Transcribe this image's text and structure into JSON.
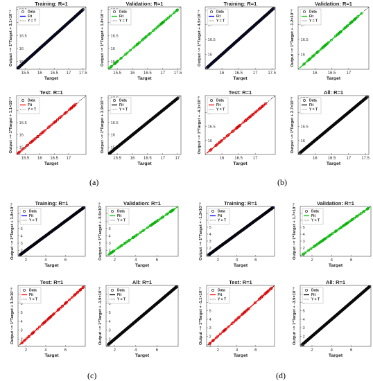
{
  "panel_labels": [
    "(a)",
    "(b)",
    "(c)",
    "(d)"
  ],
  "common": {
    "xlabel": "Target",
    "legend_labels": [
      "Data",
      "Fit",
      "Y = T"
    ],
    "colors": {
      "data": "#000000",
      "identity": "#000000",
      "training_fit": "#0000ff",
      "validation_fit": "#00cc00",
      "test_fit": "#ff0000",
      "all_fit": "#000000",
      "validation_markers": "#00aa00",
      "test_markers": "#cc0000"
    }
  },
  "chart_data": [
    {
      "group": "a",
      "type": "scatter",
      "title": "Training: R=1",
      "ylabel": "Output ~= 1*Target + 3.1×10⁻⁶",
      "fit": "training",
      "xlim": [
        15.2,
        17.6
      ],
      "ylim": [
        15.2,
        17.6
      ],
      "xticks": [
        "15.5",
        "16",
        "16.5",
        "17",
        "17.5"
      ],
      "yticks": [
        "15.5",
        "16",
        "16.5",
        "17",
        "17.5"
      ],
      "data_range": [
        15.2,
        17.5
      ],
      "markers": "dense",
      "marker_color": "data"
    },
    {
      "group": "a",
      "type": "scatter",
      "title": "Validation: R=1",
      "ylabel": "Output ~= 1*Target + 1.8×10⁻⁶",
      "fit": "validation",
      "xlim": [
        15.2,
        17.6
      ],
      "ylim": [
        15.2,
        17.6
      ],
      "xticks": [
        "15.5",
        "16",
        "16.5",
        "17",
        "17.5"
      ],
      "yticks": [
        "15.5",
        "16",
        "16.5",
        "17",
        "17.5"
      ],
      "data_range": [
        15.2,
        17.5
      ],
      "markers": "sparse",
      "marker_color": "validation_markers"
    },
    {
      "group": "b",
      "type": "scatter",
      "title": "Training: R=1",
      "ylabel": "Output ~= 1*Target + 4.5×10⁻⁶",
      "fit": "training",
      "xlim": [
        15.5,
        17.6
      ],
      "ylim": [
        15.5,
        17.6
      ],
      "xticks": [
        "16",
        "16.5",
        "17",
        "17.5"
      ],
      "yticks": [
        "16",
        "16.5",
        "17",
        "17.5"
      ],
      "data_range": [
        15.55,
        17.55
      ],
      "markers": "dense",
      "marker_color": "data"
    },
    {
      "group": "b",
      "type": "scatter",
      "title": "Validation: R=1",
      "ylabel": "Output ~= 1*Target + -1.2×10⁻⁶",
      "fit": "validation",
      "xlim": [
        15.5,
        17.6
      ],
      "ylim": [
        15.5,
        17.6
      ],
      "xticks": [
        "16",
        "16.5",
        "17"
      ],
      "yticks": [
        "16",
        "16.5",
        "17"
      ],
      "data_range": [
        15.55,
        17.4
      ],
      "markers": "sparse",
      "marker_color": "validation_markers"
    },
    {
      "group": "a",
      "type": "scatter",
      "title": "Test: R=1",
      "ylabel": "Output ~= 1*Target + 1.1×10⁻⁶",
      "fit": "test",
      "xlim": [
        15.2,
        17.6
      ],
      "ylim": [
        15.2,
        17.6
      ],
      "xticks": [
        "15.5",
        "16",
        "16.5",
        "17"
      ],
      "yticks": [
        "15.5",
        "16",
        "16.5",
        "17"
      ],
      "data_range": [
        15.2,
        17.3
      ],
      "markers": "sparse",
      "marker_color": "test_markers"
    },
    {
      "group": "a",
      "type": "scatter",
      "title": "",
      "ylabel": "Output ~= 1*Target + 3.9×10⁻⁶",
      "fit": "all",
      "xlim": [
        15.2,
        17.6
      ],
      "ylim": [
        15.2,
        17.6
      ],
      "xticks": [
        "15.5",
        "16",
        "16.5",
        "17",
        "17."
      ],
      "yticks": [
        "15.5",
        "16",
        "16.5",
        "17",
        "17.5"
      ],
      "data_range": [
        15.2,
        17.5
      ],
      "markers": "dense",
      "marker_color": "data"
    },
    {
      "group": "b",
      "type": "scatter",
      "title": "Test: R=1",
      "ylabel": "Output ~= 1*Target + -4.1×10⁻⁶",
      "fit": "test",
      "xlim": [
        15.5,
        17.6
      ],
      "ylim": [
        15.5,
        17.6
      ],
      "xticks": [
        "16",
        "16.5",
        "17"
      ],
      "yticks": [
        "16",
        "16.5",
        "17"
      ],
      "data_range": [
        15.55,
        17.35
      ],
      "markers": "sparse",
      "marker_color": "test_markers"
    },
    {
      "group": "b",
      "type": "scatter",
      "title": "All: R=1",
      "ylabel": "Output ~= 1*Target + 2.7×10⁻⁶",
      "fit": "all",
      "xlim": [
        15.5,
        17.6
      ],
      "ylim": [
        15.5,
        17.6
      ],
      "xticks": [
        "16",
        "16.5",
        "17",
        "17.5"
      ],
      "yticks": [
        "16",
        "16.5",
        "17",
        "17.5"
      ],
      "data_range": [
        15.55,
        17.55
      ],
      "markers": "dense",
      "marker_color": "data"
    },
    {
      "group": "c",
      "type": "scatter",
      "title": "Training: R=1",
      "ylabel": "Output ~= 1*Target + 1.8×10⁻⁶",
      "fit": "training",
      "xlim": [
        1.2,
        8.0
      ],
      "ylim": [
        1.2,
        8.0
      ],
      "xticks": [
        "2",
        "4",
        "6"
      ],
      "yticks": [
        "2",
        "3",
        "4",
        "5",
        "6",
        "7"
      ],
      "data_range": [
        1.4,
        7.9
      ],
      "markers": "dense",
      "marker_color": "data"
    },
    {
      "group": "c",
      "type": "scatter",
      "title": "Validation: R=1",
      "ylabel": "Output ~= 1*Target + -5.5×10⁻⁶",
      "fit": "validation",
      "xlim": [
        1.2,
        8.0
      ],
      "ylim": [
        1.2,
        8.0
      ],
      "xticks": [
        "2",
        "4",
        "6"
      ],
      "yticks": [
        "2",
        "3",
        "4",
        "5",
        "6",
        "7"
      ],
      "data_range": [
        1.4,
        7.9
      ],
      "markers": "sparse",
      "marker_color": "validation_markers"
    },
    {
      "group": "d",
      "type": "scatter",
      "title": "Training: R=1",
      "ylabel": "Output ~= 1*Target + -1.3×10⁻⁶",
      "fit": "training",
      "xlim": [
        0.8,
        8.0
      ],
      "ylim": [
        0.8,
        8.0
      ],
      "xticks": [
        "2",
        "4",
        "6"
      ],
      "yticks": [
        "1",
        "2",
        "3",
        "4",
        "5",
        "6",
        "7"
      ],
      "data_range": [
        1.0,
        7.9
      ],
      "markers": "dense",
      "marker_color": "data"
    },
    {
      "group": "d",
      "type": "scatter",
      "title": "Validation: R=1",
      "ylabel": "Output ~= 1*Target + 1.7×10⁻⁶",
      "fit": "validation",
      "xlim": [
        0.8,
        8.0
      ],
      "ylim": [
        0.8,
        8.0
      ],
      "xticks": [
        "2",
        "4",
        "6"
      ],
      "yticks": [
        "1",
        "2",
        "3",
        "4",
        "5",
        "6",
        "7"
      ],
      "data_range": [
        1.0,
        7.9
      ],
      "markers": "sparse",
      "marker_color": "validation_markers"
    },
    {
      "group": "c",
      "type": "scatter",
      "title": "Test: R=1",
      "ylabel": "Output ~= 1*Target + 3.3×10⁻⁶",
      "fit": "test",
      "xlim": [
        1.2,
        8.0
      ],
      "ylim": [
        1.2,
        8.0
      ],
      "xticks": [
        "2",
        "4",
        "6"
      ],
      "yticks": [
        "2",
        "3",
        "4",
        "5",
        "6",
        "7"
      ],
      "data_range": [
        1.4,
        7.9
      ],
      "markers": "sparse",
      "marker_color": "test_markers"
    },
    {
      "group": "c",
      "type": "scatter",
      "title": "All: R=1",
      "ylabel": "Output ~= 1*Target + -1.9×10⁻⁶",
      "fit": "all",
      "xlim": [
        1.2,
        8.0
      ],
      "ylim": [
        1.2,
        8.0
      ],
      "xticks": [
        "2",
        "4",
        "6"
      ],
      "yticks": [
        "2",
        "3",
        "4",
        "5",
        "6",
        "7"
      ],
      "data_range": [
        1.4,
        7.9
      ],
      "markers": "dense",
      "marker_color": "data"
    },
    {
      "group": "d",
      "type": "scatter",
      "title": "Test: R=1",
      "ylabel": "Output ~= 1*Target + -1.1×10⁻⁶",
      "fit": "test",
      "xlim": [
        0.8,
        8.0
      ],
      "ylim": [
        0.8,
        8.0
      ],
      "xticks": [
        "2",
        "4",
        "6"
      ],
      "yticks": [
        "1",
        "2",
        "3",
        "4",
        "5",
        "6",
        "7"
      ],
      "data_range": [
        1.0,
        7.9
      ],
      "markers": "sparse",
      "marker_color": "test_markers"
    },
    {
      "group": "d",
      "type": "scatter",
      "title": "All: R=1",
      "ylabel": "Output ~= 1*Target + -3.9×10⁻⁶",
      "fit": "all",
      "xlim": [
        0.8,
        8.0
      ],
      "ylim": [
        0.8,
        8.0
      ],
      "xticks": [
        "2",
        "4",
        "6"
      ],
      "yticks": [
        "1",
        "2",
        "3",
        "4",
        "5",
        "6",
        "7"
      ],
      "data_range": [
        1.0,
        7.9
      ],
      "markers": "dense",
      "marker_color": "data"
    }
  ]
}
